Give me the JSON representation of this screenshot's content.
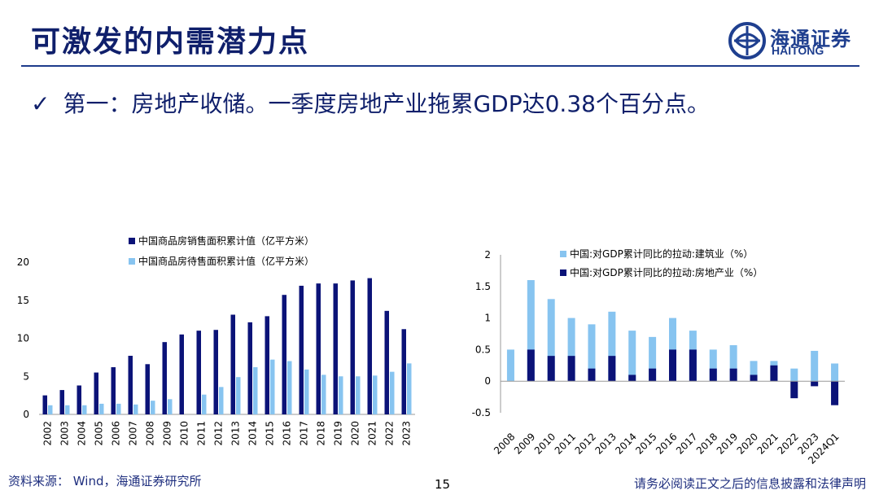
{
  "page": {
    "title": "可激发的内需潜力点",
    "bullet_check": "✓",
    "bullet": "第一：房地产收储。一季度房地产业拖累GDP达0.38个百分点。",
    "source": "资料来源： Wind，海通证券研究所",
    "page_number": "15",
    "disclaimer": "请务必阅读正文之后的信息披露和法律声明"
  },
  "logo": {
    "cn": "海通证券",
    "en": "HAITONG",
    "icon": "haitong-logo-icon",
    "color": "#1f3f8f"
  },
  "colors": {
    "navy": "#0b1378",
    "light_blue": "#87c4f0",
    "title": "#0f1f6b"
  },
  "chart_data": [
    {
      "type": "bar",
      "categories": [
        "2002",
        "2003",
        "2004",
        "2005",
        "2006",
        "2007",
        "2008",
        "2009",
        "2010",
        "2011",
        "2012",
        "2013",
        "2014",
        "2015",
        "2016",
        "2017",
        "2018",
        "2019",
        "2020",
        "2021",
        "2022",
        "2023"
      ],
      "series": [
        {
          "name": "中国商品房销售面积累计值（亿平方米）",
          "color": "#0b1378",
          "values": [
            2.5,
            3.2,
            3.8,
            5.5,
            6.2,
            7.7,
            6.6,
            9.5,
            10.5,
            11.0,
            11.1,
            13.1,
            12.1,
            12.9,
            15.7,
            16.9,
            17.2,
            17.2,
            17.6,
            17.9,
            13.6,
            11.2
          ]
        },
        {
          "name": "中国商品房待售面积累计值（亿平方米）",
          "color": "#87c4f0",
          "values": [
            1.2,
            1.2,
            1.2,
            1.4,
            1.4,
            1.3,
            1.8,
            2.0,
            null,
            2.6,
            3.6,
            4.9,
            6.2,
            7.2,
            7.0,
            5.9,
            5.2,
            5.0,
            5.0,
            5.1,
            5.6,
            6.7
          ]
        }
      ],
      "yticks": [
        "0",
        "5",
        "10",
        "15",
        "20"
      ],
      "ylim": [
        0,
        20
      ],
      "legend": "top-center"
    },
    {
      "type": "bar",
      "categories": [
        "2008",
        "2009",
        "2010",
        "2011",
        "2012",
        "2013",
        "2014",
        "2015",
        "2016",
        "2017",
        "2018",
        "2019",
        "2020",
        "2021",
        "2022",
        "2023",
        "2024Q1"
      ],
      "series": [
        {
          "name": "中国:对GDP累计同比的拉动:建筑业（%）",
          "color": "#87c4f0",
          "values": [
            0.5,
            1.6,
            1.3,
            1.0,
            0.9,
            1.1,
            0.8,
            0.7,
            1.0,
            0.8,
            0.5,
            0.57,
            0.32,
            0.32,
            0.2,
            0.48,
            0.28
          ]
        },
        {
          "name": "中国:对GDP累计同比的拉动:房地产业（%）",
          "color": "#0b1378",
          "values": [
            0.0,
            0.5,
            0.4,
            0.4,
            0.2,
            0.4,
            0.1,
            0.2,
            0.5,
            0.5,
            0.2,
            0.2,
            0.1,
            0.25,
            -0.27,
            -0.08,
            -0.38
          ]
        }
      ],
      "yticks": [
        "2",
        "1.5",
        "1",
        "0.5",
        "0",
        "-0.5"
      ],
      "ylim": [
        -0.5,
        2
      ],
      "legend": "top-center"
    }
  ]
}
